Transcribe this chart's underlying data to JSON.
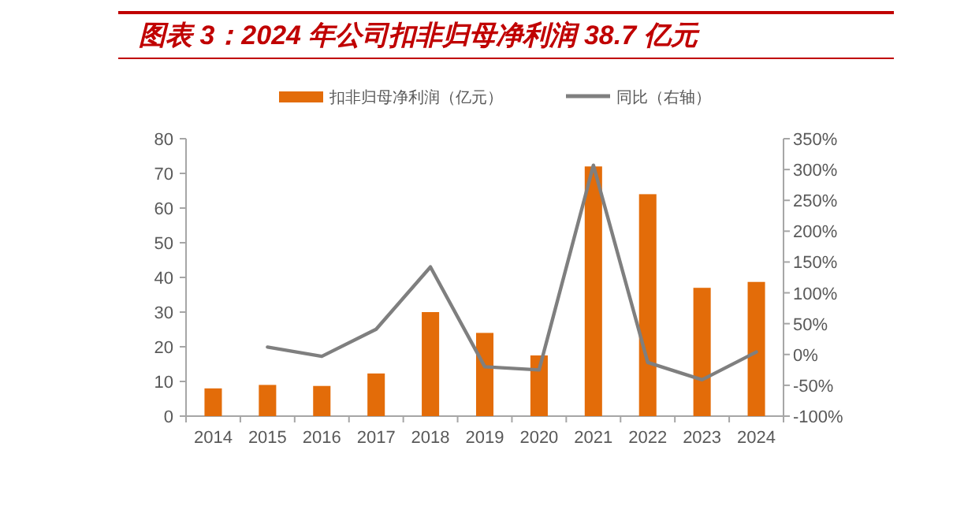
{
  "chart_data": {
    "type": "bar",
    "title": "图表 3：2024 年公司扣非归母净利润 38.7 亿元",
    "categories": [
      "2014",
      "2015",
      "2016",
      "2017",
      "2018",
      "2019",
      "2020",
      "2021",
      "2022",
      "2023",
      "2024"
    ],
    "series": [
      {
        "name": "扣非归母净利润（亿元）",
        "color": "#e36c09",
        "values": [
          8.0,
          9.0,
          8.7,
          12.3,
          30,
          24,
          17.5,
          72,
          64,
          37,
          38.7
        ]
      },
      {
        "name": "同比（右轴）",
        "type": "line",
        "axis": "y2",
        "color": "#7f7f7f",
        "values": [
          null,
          12,
          -3,
          41,
          142,
          -20,
          -25,
          307,
          -13,
          -41,
          4
        ]
      }
    ],
    "ylim": [
      0,
      80
    ],
    "yticks": [
      0,
      10,
      20,
      30,
      40,
      50,
      60,
      70,
      80
    ],
    "y2lim": [
      -100,
      350
    ],
    "y2ticks": [
      {
        "value": -100,
        "label": "-100%"
      },
      {
        "value": -50,
        "label": "-50%"
      },
      {
        "value": 0,
        "label": "0%"
      },
      {
        "value": 50,
        "label": "50%"
      },
      {
        "value": 100,
        "label": "100%"
      },
      {
        "value": 150,
        "label": "150%"
      },
      {
        "value": 200,
        "label": "200%"
      },
      {
        "value": 250,
        "label": "250%"
      },
      {
        "value": 300,
        "label": "300%"
      },
      {
        "value": 350,
        "label": "350%"
      }
    ],
    "grid": false,
    "legend": "top",
    "marker": "none",
    "line_style": "solid"
  }
}
